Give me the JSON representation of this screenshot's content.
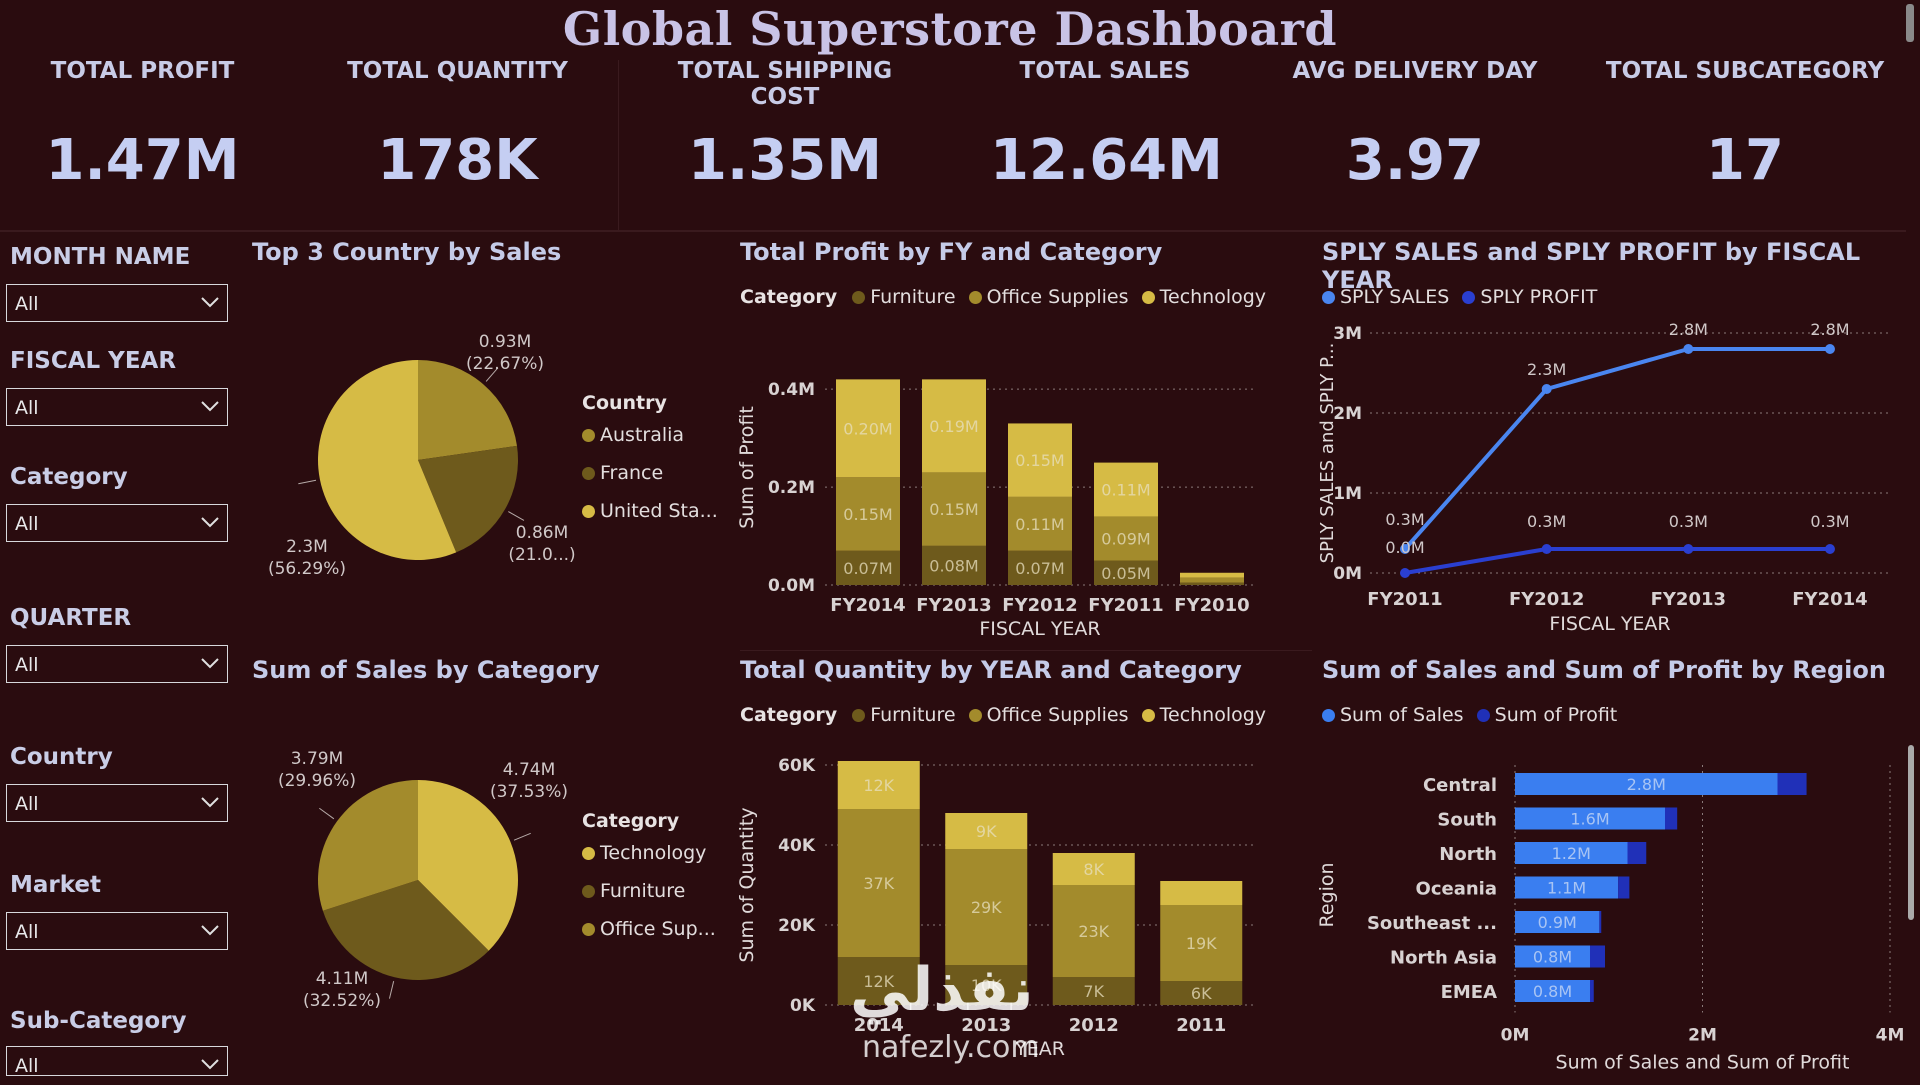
{
  "title": "Global Superstore Dashboard",
  "kpis": [
    {
      "label": "TOTAL PROFIT",
      "value": "1.47M"
    },
    {
      "label": "TOTAL QUANTITY",
      "value": "178K"
    },
    {
      "label": "TOTAL SHIPPING COST",
      "value": "1.35M"
    },
    {
      "label": "TOTAL SALES",
      "value": "12.64M"
    },
    {
      "label": "AVG DELIVERY DAY",
      "value": "3.97"
    },
    {
      "label": "TOTAL SUBCATEGORY",
      "value": "17"
    }
  ],
  "slicers": [
    {
      "label": "MONTH NAME",
      "value": "All"
    },
    {
      "label": "FISCAL YEAR",
      "value": "All"
    },
    {
      "label": "Category",
      "value": "All"
    },
    {
      "label": "QUARTER",
      "value": "All"
    },
    {
      "label": "Country",
      "value": "All"
    },
    {
      "label": "Market",
      "value": "All"
    },
    {
      "label": "Sub-Category",
      "value": "All"
    }
  ],
  "watermark": {
    "arabic": "نفذلي",
    "latin": "nafezly.com"
  },
  "chart_data": [
    {
      "type": "pie",
      "title": "Top 3 Country by Sales",
      "legend_title": "Country",
      "legend_position": "right",
      "labels": [
        "Australia",
        "France",
        "United Sta..."
      ],
      "values": [
        0.93,
        0.86,
        2.3
      ],
      "data_labels": [
        "0.93M",
        "0.86M",
        "2.3M"
      ],
      "percent_labels": [
        "(22.67%)",
        "(21.0...)",
        "(56.29%)"
      ],
      "colors": [
        "#a38b2c",
        "#6e5a1c",
        "#d6bb45"
      ]
    },
    {
      "type": "pie",
      "title": "Sum of Sales by Category",
      "legend_title": "Category",
      "legend_position": "right",
      "labels": [
        "Technology",
        "Furniture",
        "Office Sup..."
      ],
      "values": [
        4.74,
        4.11,
        3.79
      ],
      "data_labels": [
        "4.74M",
        "4.11M",
        "3.79M"
      ],
      "percent_labels": [
        "(37.53%)",
        "(32.52%)",
        "(29.96%)"
      ],
      "colors": [
        "#d6bb45",
        "#6e5a1c",
        "#a38b2c"
      ]
    },
    {
      "type": "bar",
      "stacked": true,
      "title": "Total Profit by FY and Category",
      "legend_title": "Category",
      "legend_position": "top-left",
      "xlabel": "FISCAL YEAR",
      "ylabel": "Sum of Profit",
      "categories": [
        "FY2014",
        "FY2013",
        "FY2012",
        "FY2011",
        "FY2010"
      ],
      "series": [
        {
          "name": "Furniture",
          "values": [
            0.07,
            0.08,
            0.07,
            0.05,
            0.005
          ],
          "labels": [
            "0.07M",
            "0.08M",
            "0.07M",
            "0.05M",
            ""
          ],
          "color": "#6e5a1c"
        },
        {
          "name": "Office Supplies",
          "values": [
            0.15,
            0.15,
            0.11,
            0.09,
            0.01
          ],
          "labels": [
            "0.15M",
            "0.15M",
            "0.11M",
            "0.09M",
            ""
          ],
          "color": "#a38b2c"
        },
        {
          "name": "Technology",
          "values": [
            0.2,
            0.19,
            0.15,
            0.11,
            0.01
          ],
          "labels": [
            "0.20M",
            "0.19M",
            "0.15M",
            "0.11M",
            ""
          ],
          "color": "#d6bb45"
        }
      ],
      "yticks": [
        "0.0M",
        "0.2M",
        "0.4M"
      ],
      "ytick_values": [
        0,
        0.2,
        0.4
      ],
      "ylim": [
        0,
        0.48
      ],
      "grid": true
    },
    {
      "type": "line",
      "title": "SPLY SALES and SPLY PROFIT by FISCAL YEAR",
      "legend_position": "top-left",
      "xlabel": "FISCAL YEAR",
      "ylabel": "SPLY SALES and SPLY P...",
      "categories": [
        "FY2011",
        "FY2012",
        "FY2013",
        "FY2014"
      ],
      "series": [
        {
          "name": "SPLY SALES",
          "values": [
            0.3,
            2.3,
            2.8,
            2.8
          ],
          "labels": [
            "0.3M",
            "2.3M",
            "2.8M",
            "2.8M"
          ],
          "color": "#4a86f0"
        },
        {
          "name": "SPLY PROFIT",
          "values": [
            0.0,
            0.3,
            0.3,
            0.3
          ],
          "labels": [
            "0.0M",
            "0.3M",
            "0.3M",
            "0.3M"
          ],
          "color": "#2a3fd0"
        }
      ],
      "yticks": [
        "0M",
        "1M",
        "2M",
        "3M"
      ],
      "ytick_values": [
        0,
        1,
        2,
        3
      ],
      "ylim": [
        0,
        3
      ],
      "grid": true
    },
    {
      "type": "bar",
      "stacked": true,
      "title": "Total Quantity by YEAR and Category",
      "legend_title": "Category",
      "legend_position": "top-left",
      "xlabel": "YEAR",
      "ylabel": "Sum of Quantity",
      "categories": [
        "2014",
        "2013",
        "2012",
        "2011"
      ],
      "series": [
        {
          "name": "Furniture",
          "values": [
            12,
            10,
            7,
            6
          ],
          "labels": [
            "12K",
            "10K",
            "7K",
            "6K"
          ],
          "color": "#6e5a1c"
        },
        {
          "name": "Office Supplies",
          "values": [
            37,
            29,
            23,
            19
          ],
          "labels": [
            "37K",
            "29K",
            "23K",
            "19K"
          ],
          "color": "#a38b2c"
        },
        {
          "name": "Technology",
          "values": [
            12,
            9,
            8,
            6
          ],
          "labels": [
            "12K",
            "9K",
            "8K",
            ""
          ],
          "color": "#d6bb45"
        }
      ],
      "yticks": [
        "0K",
        "20K",
        "40K",
        "60K"
      ],
      "ytick_values": [
        0,
        20,
        40,
        60
      ],
      "ylim": [
        0,
        60
      ],
      "grid": true
    },
    {
      "type": "bar",
      "orientation": "horizontal",
      "title": "Sum of Sales and Sum of Profit by Region",
      "legend_position": "top-left",
      "xlabel": "Sum of Sales and Sum of Profit",
      "ylabel": "Region",
      "categories": [
        "Central",
        "South",
        "North",
        "Oceania",
        "Southeast ...",
        "North Asia",
        "EMEA"
      ],
      "series": [
        {
          "name": "Sum of Sales",
          "values": [
            2.8,
            1.6,
            1.2,
            1.1,
            0.9,
            0.8,
            0.8
          ],
          "labels": [
            "2.8M",
            "1.6M",
            "1.2M",
            "1.1M",
            "0.9M",
            "0.8M",
            "0.8M"
          ],
          "color": "#3a7ef0"
        },
        {
          "name": "Sum of Profit",
          "values": [
            0.31,
            0.13,
            0.2,
            0.12,
            0.02,
            0.16,
            0.04
          ],
          "color": "#2030b8"
        }
      ],
      "xticks": [
        "0M",
        "2M",
        "4M"
      ],
      "xtick_values": [
        0,
        2,
        4
      ],
      "xlim": [
        0,
        4
      ],
      "grid": true
    }
  ]
}
